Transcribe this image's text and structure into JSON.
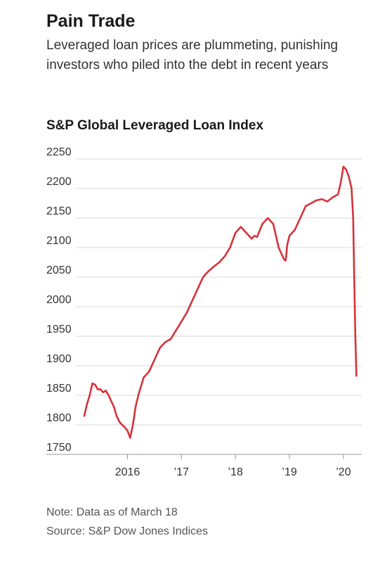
{
  "header": {
    "title": "Pain Trade",
    "subtitle": "Leveraged loan prices are plummeting, punishing investors who piled into the debt in recent years"
  },
  "chart_title": "S&P Global Leveraged Loan Index",
  "footnotes": {
    "note": "Note: Data as of March 18",
    "source": "Source: S&P Dow Jones Indices"
  },
  "colors": {
    "line": "#d6323b",
    "grid": "#d9d9d9",
    "axis": "#999999"
  },
  "chart_data": {
    "type": "line",
    "title": "S&P Global Leveraged Loan Index",
    "xlabel": "",
    "ylabel": "",
    "grid": true,
    "ylim": [
      1750,
      2250
    ],
    "xlim": [
      2015.2,
      2020.3
    ],
    "y_ticks": [
      1750,
      1800,
      1850,
      1900,
      1950,
      2000,
      2050,
      2100,
      2150,
      2200,
      2250
    ],
    "x_ticks": [
      {
        "value": 2016,
        "label": "2016"
      },
      {
        "value": 2017,
        "label": "’17"
      },
      {
        "value": 2018,
        "label": "’18"
      },
      {
        "value": 2019,
        "label": "’19"
      },
      {
        "value": 2020,
        "label": "’20"
      }
    ],
    "series": [
      {
        "x": [
          2015.2,
          2015.25,
          2015.3,
          2015.35,
          2015.4,
          2015.45,
          2015.5,
          2015.55,
          2015.6,
          2015.65,
          2015.7,
          2015.75,
          2015.8,
          2015.85,
          2015.9,
          2015.95,
          2016.0,
          2016.05,
          2016.1,
          2016.15,
          2016.2,
          2016.3,
          2016.4,
          2016.5,
          2016.6,
          2016.7,
          2016.8,
          2016.9,
          2017.0,
          2017.1,
          2017.2,
          2017.3,
          2017.4,
          2017.5,
          2017.6,
          2017.7,
          2017.8,
          2017.9,
          2018.0,
          2018.05,
          2018.1,
          2018.2,
          2018.3,
          2018.35,
          2018.4,
          2018.5,
          2018.6,
          2018.7,
          2018.8,
          2018.85,
          2018.9,
          2018.93,
          2018.96,
          2019.0,
          2019.1,
          2019.15,
          2019.2,
          2019.3,
          2019.4,
          2019.5,
          2019.6,
          2019.7,
          2019.8,
          2019.9,
          2019.95,
          2020.0,
          2020.05,
          2020.1,
          2020.15,
          2020.18,
          2020.2,
          2020.22,
          2020.24
        ],
        "y": [
          1815,
          1835,
          1850,
          1870,
          1868,
          1860,
          1860,
          1855,
          1858,
          1850,
          1840,
          1830,
          1815,
          1805,
          1800,
          1796,
          1790,
          1778,
          1800,
          1830,
          1850,
          1880,
          1890,
          1910,
          1930,
          1940,
          1945,
          1960,
          1975,
          1990,
          2010,
          2030,
          2050,
          2060,
          2068,
          2075,
          2085,
          2100,
          2125,
          2130,
          2135,
          2125,
          2115,
          2120,
          2118,
          2140,
          2150,
          2140,
          2100,
          2090,
          2080,
          2078,
          2105,
          2120,
          2130,
          2140,
          2150,
          2170,
          2175,
          2180,
          2182,
          2178,
          2185,
          2190,
          2210,
          2237,
          2232,
          2220,
          2200,
          2150,
          2050,
          1950,
          1883
        ]
      }
    ]
  }
}
